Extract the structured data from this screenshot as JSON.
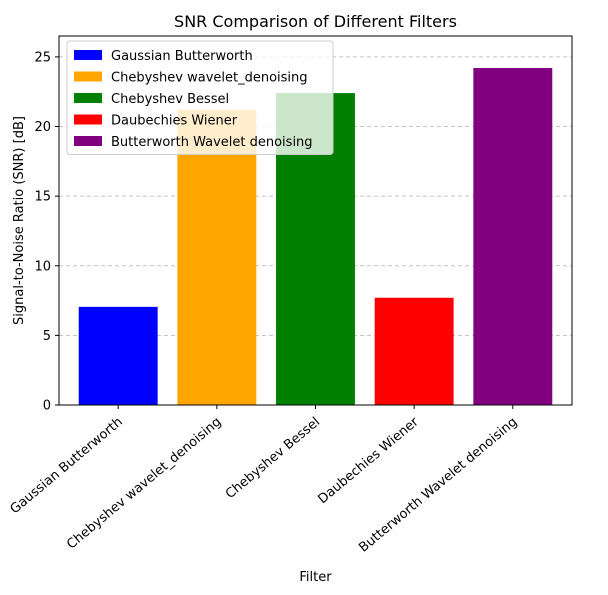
{
  "chart_data": {
    "type": "bar",
    "title": "SNR Comparison of Different Filters",
    "xlabel": "Filter",
    "ylabel": "Signal-to-Noise Ratio (SNR) [dB]",
    "categories": [
      "Gaussian Butterworth",
      "Chebyshev wavelet_denoising",
      "Chebyshev Bessel",
      "Daubechies Wiener",
      "Butterworth Wavelet denoising"
    ],
    "values": [
      7.05,
      21.2,
      22.4,
      7.7,
      24.2
    ],
    "colors": [
      "#0000ff",
      "#ffa500",
      "#008000",
      "#ff0000",
      "#800080"
    ],
    "ylim": [
      0,
      26.5
    ],
    "yticks": [
      0,
      5,
      10,
      15,
      20,
      25
    ],
    "grid": "y-dashed",
    "legend": {
      "position": "top-left",
      "entries": [
        "Gaussian Butterworth",
        "Chebyshev wavelet_denoising",
        "Chebyshev Bessel",
        "Daubechies Wiener",
        "Butterworth Wavelet denoising"
      ]
    }
  }
}
